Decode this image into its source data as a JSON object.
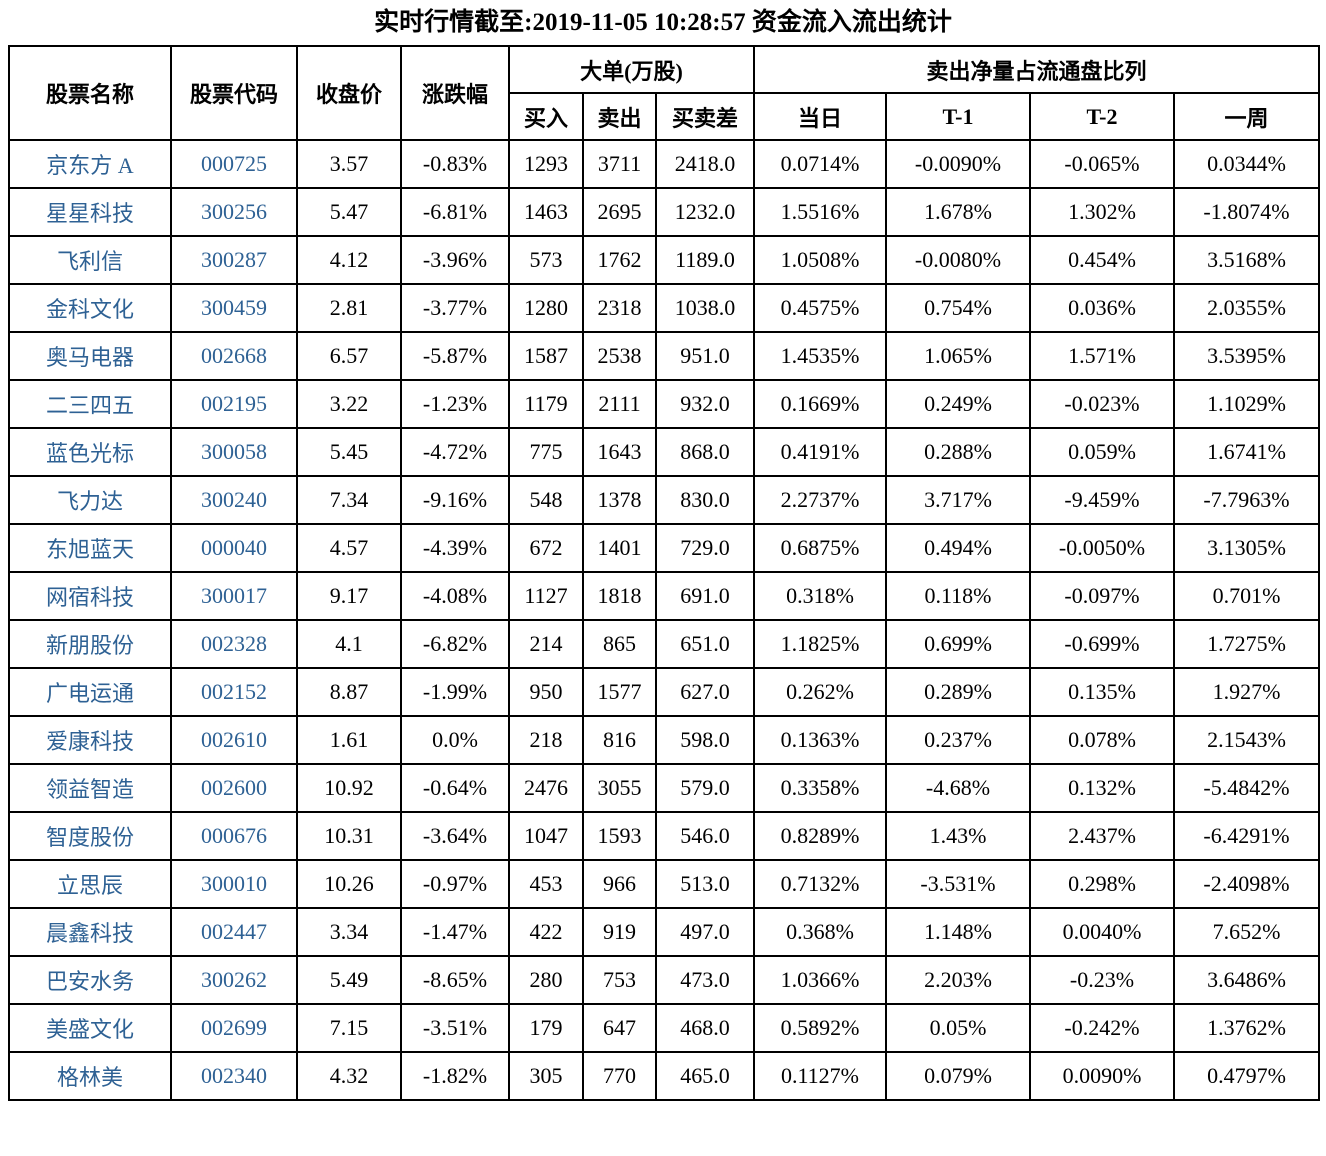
{
  "title": "实时行情截至:2019-11-05 10:28:57 资金流入流出统计",
  "colors": {
    "stock_name_code_blue": "#2E6194",
    "text": "#000000",
    "border": "#000000",
    "background": "#FFFFFF"
  },
  "chart_data": {
    "type": "table",
    "title": "实时行情截至:2019-11-05 10:28:57 资金流入流出统计",
    "header": {
      "stock_name": "股票名称",
      "stock_code": "股票代码",
      "close_price": "收盘价",
      "change_pct": "涨跌幅",
      "big_order_group": "大单(万股)",
      "buy": "买入",
      "sell": "卖出",
      "buy_sell_diff": "买卖差",
      "sell_net_group": "卖出净量占流通盘比列",
      "today": "当日",
      "t_minus_1": "T-1",
      "t_minus_2": "T-2",
      "one_week": "一周"
    },
    "rows": [
      [
        "京东方 A",
        "000725",
        "3.57",
        "-0.83%",
        "1293",
        "3711",
        "2418.0",
        "0.0714%",
        "-0.0090%",
        "-0.065%",
        "0.0344%"
      ],
      [
        "星星科技",
        "300256",
        "5.47",
        "-6.81%",
        "1463",
        "2695",
        "1232.0",
        "1.5516%",
        "1.678%",
        "1.302%",
        "-1.8074%"
      ],
      [
        "飞利信",
        "300287",
        "4.12",
        "-3.96%",
        "573",
        "1762",
        "1189.0",
        "1.0508%",
        "-0.0080%",
        "0.454%",
        "3.5168%"
      ],
      [
        "金科文化",
        "300459",
        "2.81",
        "-3.77%",
        "1280",
        "2318",
        "1038.0",
        "0.4575%",
        "0.754%",
        "0.036%",
        "2.0355%"
      ],
      [
        "奥马电器",
        "002668",
        "6.57",
        "-5.87%",
        "1587",
        "2538",
        "951.0",
        "1.4535%",
        "1.065%",
        "1.571%",
        "3.5395%"
      ],
      [
        "二三四五",
        "002195",
        "3.22",
        "-1.23%",
        "1179",
        "2111",
        "932.0",
        "0.1669%",
        "0.249%",
        "-0.023%",
        "1.1029%"
      ],
      [
        "蓝色光标",
        "300058",
        "5.45",
        "-4.72%",
        "775",
        "1643",
        "868.0",
        "0.4191%",
        "0.288%",
        "0.059%",
        "1.6741%"
      ],
      [
        "飞力达",
        "300240",
        "7.34",
        "-9.16%",
        "548",
        "1378",
        "830.0",
        "2.2737%",
        "3.717%",
        "-9.459%",
        "-7.7963%"
      ],
      [
        "东旭蓝天",
        "000040",
        "4.57",
        "-4.39%",
        "672",
        "1401",
        "729.0",
        "0.6875%",
        "0.494%",
        "-0.0050%",
        "3.1305%"
      ],
      [
        "网宿科技",
        "300017",
        "9.17",
        "-4.08%",
        "1127",
        "1818",
        "691.0",
        "0.318%",
        "0.118%",
        "-0.097%",
        "0.701%"
      ],
      [
        "新朋股份",
        "002328",
        "4.1",
        "-6.82%",
        "214",
        "865",
        "651.0",
        "1.1825%",
        "0.699%",
        "-0.699%",
        "1.7275%"
      ],
      [
        "广电运通",
        "002152",
        "8.87",
        "-1.99%",
        "950",
        "1577",
        "627.0",
        "0.262%",
        "0.289%",
        "0.135%",
        "1.927%"
      ],
      [
        "爱康科技",
        "002610",
        "1.61",
        "0.0%",
        "218",
        "816",
        "598.0",
        "0.1363%",
        "0.237%",
        "0.078%",
        "2.1543%"
      ],
      [
        "领益智造",
        "002600",
        "10.92",
        "-0.64%",
        "2476",
        "3055",
        "579.0",
        "0.3358%",
        "-4.68%",
        "0.132%",
        "-5.4842%"
      ],
      [
        "智度股份",
        "000676",
        "10.31",
        "-3.64%",
        "1047",
        "1593",
        "546.0",
        "0.8289%",
        "1.43%",
        "2.437%",
        "-6.4291%"
      ],
      [
        "立思辰",
        "300010",
        "10.26",
        "-0.97%",
        "453",
        "966",
        "513.0",
        "0.7132%",
        "-3.531%",
        "0.298%",
        "-2.4098%"
      ],
      [
        "晨鑫科技",
        "002447",
        "3.34",
        "-1.47%",
        "422",
        "919",
        "497.0",
        "0.368%",
        "1.148%",
        "0.0040%",
        "7.652%"
      ],
      [
        "巴安水务",
        "300262",
        "5.49",
        "-8.65%",
        "280",
        "753",
        "473.0",
        "1.0366%",
        "2.203%",
        "-0.23%",
        "3.6486%"
      ],
      [
        "美盛文化",
        "002699",
        "7.15",
        "-3.51%",
        "179",
        "647",
        "468.0",
        "0.5892%",
        "0.05%",
        "-0.242%",
        "1.3762%"
      ],
      [
        "格林美",
        "002340",
        "4.32",
        "-1.82%",
        "305",
        "770",
        "465.0",
        "0.1127%",
        "0.079%",
        "0.0090%",
        "0.4797%"
      ]
    ]
  }
}
